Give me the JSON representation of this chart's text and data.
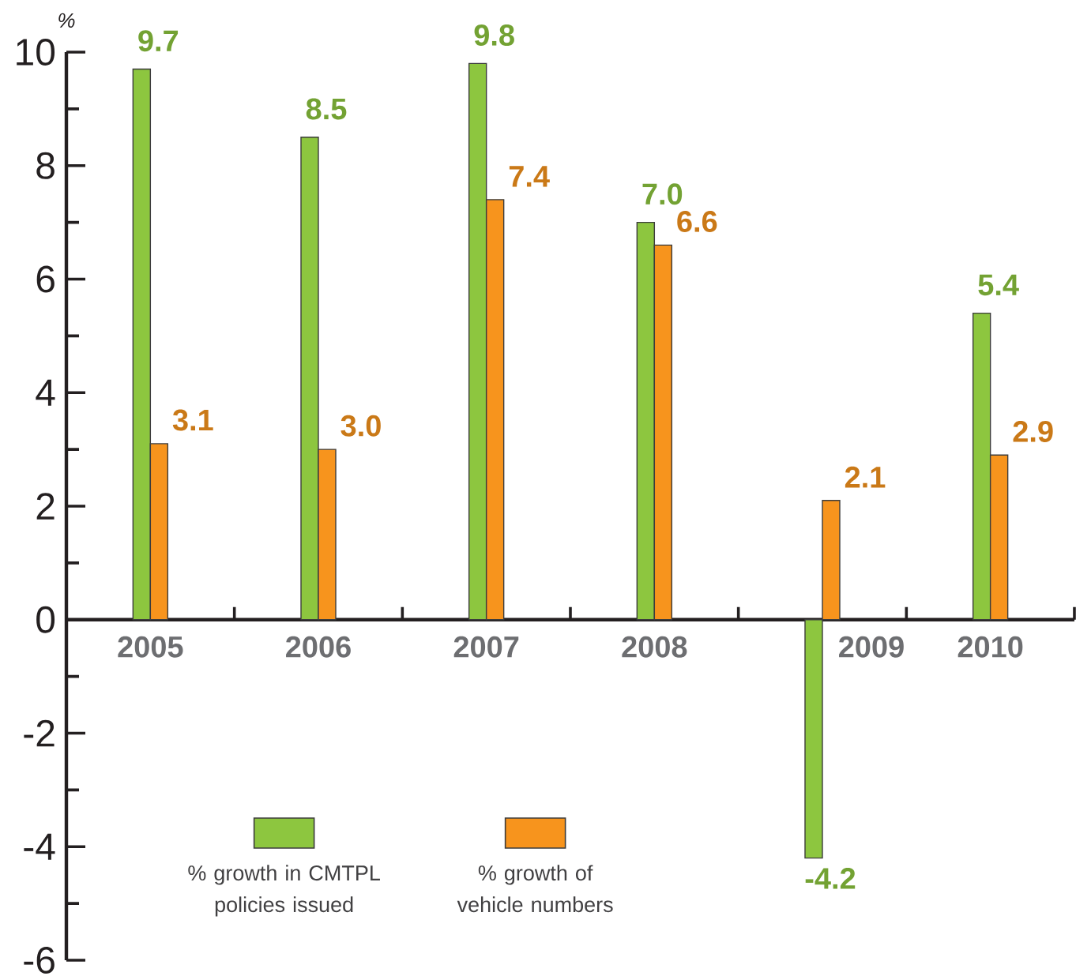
{
  "chart_data": {
    "type": "bar",
    "ylabel": "%",
    "categories": [
      "2005",
      "2006",
      "2007",
      "2008",
      "2009",
      "2010"
    ],
    "series": [
      {
        "name": "% growth in CMTPL policies issued",
        "color": "#8dc63f",
        "values": [
          9.7,
          8.5,
          9.8,
          7.0,
          -4.2,
          5.4
        ],
        "value_labels": [
          "9.7",
          "8.5",
          "9.8",
          "7.0",
          "-4.2",
          "5.4"
        ]
      },
      {
        "name": "% growth of vehicle numbers",
        "color": "#f7941d",
        "values": [
          3.1,
          3.0,
          7.4,
          6.6,
          2.1,
          2.9
        ],
        "value_labels": [
          "3.1",
          "3.0",
          "7.4",
          "6.6",
          "2.1",
          "2.9"
        ]
      }
    ],
    "ylim": [
      -6,
      10
    ],
    "yticks": [
      -6,
      -4,
      -2,
      0,
      2,
      4,
      6,
      8,
      10
    ],
    "legend": "bottom left"
  }
}
